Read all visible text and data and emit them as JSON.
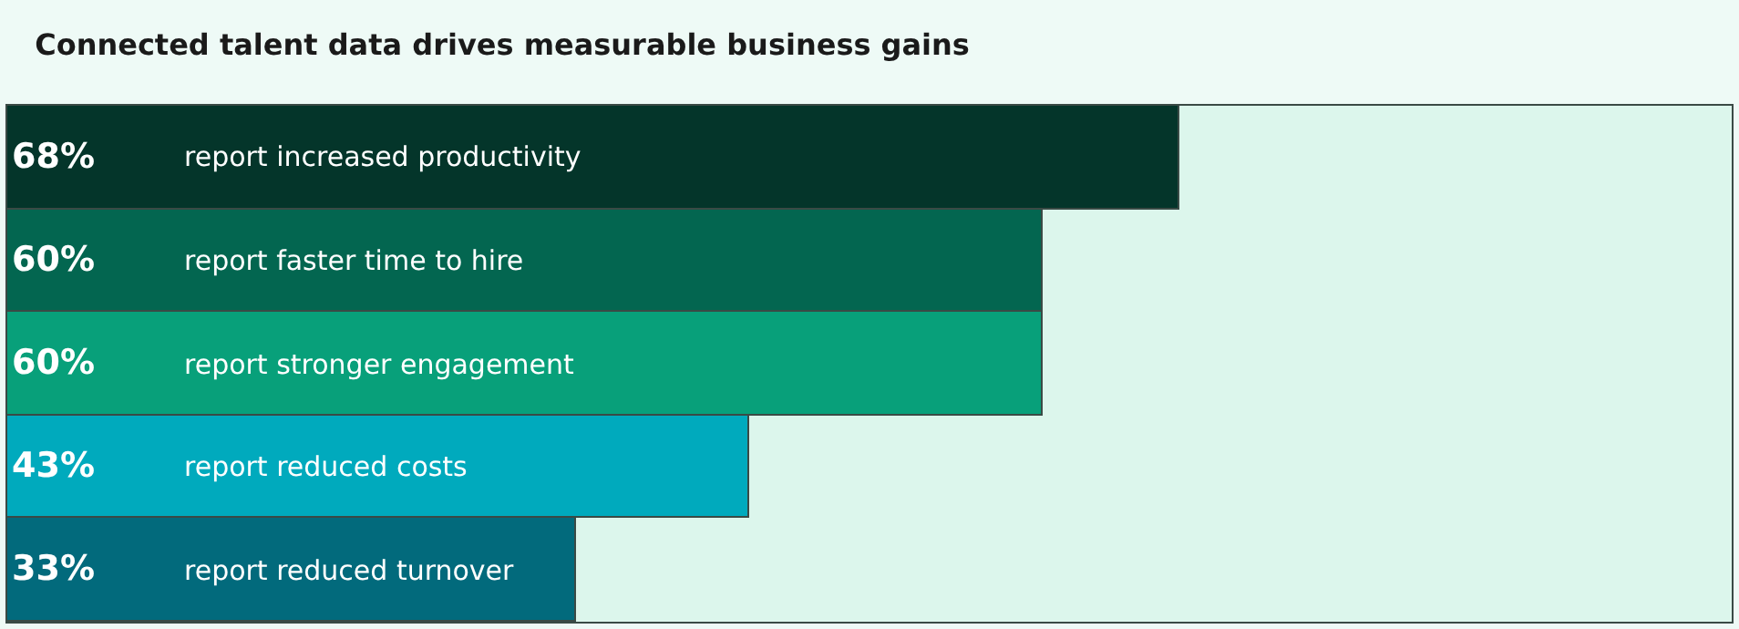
{
  "chart_data": {
    "type": "bar",
    "orientation": "horizontal",
    "title": "Connected talent data drives measurable business gains",
    "categories": [
      "report increased productivity",
      "report faster time to hire",
      "report stronger engagement",
      "report reduced costs",
      "report reduced turnover"
    ],
    "values": [
      68,
      60,
      60,
      43,
      33
    ],
    "value_labels": [
      "68%",
      "60%",
      "60%",
      "43%",
      "33%"
    ],
    "colors": [
      "#04352a",
      "#036650",
      "#08a07a",
      "#00aabd",
      "#026a7c"
    ],
    "xlim": [
      0,
      100
    ],
    "tick_labels": false,
    "grid": false,
    "legend": false
  }
}
